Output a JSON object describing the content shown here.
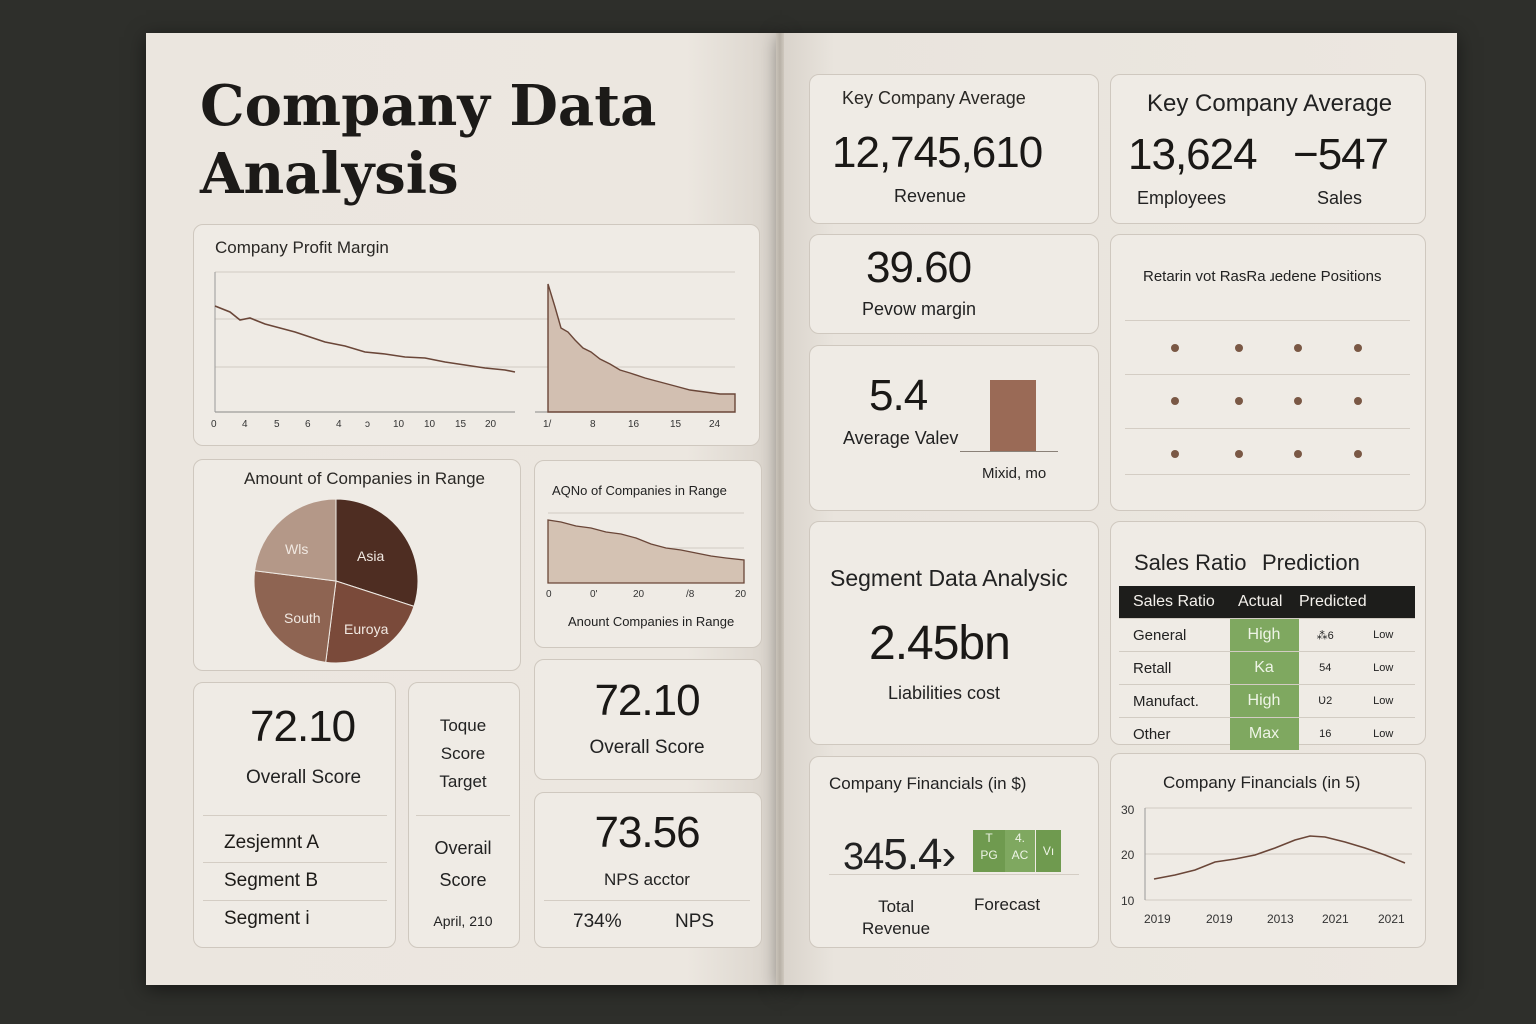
{
  "title_line1": "Company Data",
  "title_line2": "Analysis",
  "profit": {
    "title": "Company Profit Margin",
    "ticks_a": [
      "0",
      "4",
      "5",
      "6",
      "4",
      "ↄ",
      "10",
      "10",
      "15",
      "20"
    ],
    "ticks_b": [
      "1/",
      "8",
      "16",
      "15",
      "24"
    ]
  },
  "pie": {
    "title": "Amount of Companies in Range",
    "slices": [
      {
        "label": "Asia",
        "value": 30,
        "color": "#4e2d22"
      },
      {
        "label": "Euroya",
        "value": 22,
        "color": "#7a4a3a"
      },
      {
        "label": "South",
        "value": 25,
        "color": "#8e6452"
      },
      {
        "label": "Wls",
        "value": 23,
        "color": "#b49888"
      }
    ]
  },
  "range": {
    "title": "AQNo of Companies in Range",
    "ticks": [
      "0",
      "0'",
      "20",
      "/8",
      "20"
    ],
    "xlabel": "Anount Companies in Range"
  },
  "score_left": {
    "value": "72.10",
    "label": "Overall Score"
  },
  "segments": [
    "Zesjemnt A",
    "Segment B",
    "Segment i"
  ],
  "toque": {
    "lines": [
      "Toque",
      "Score",
      "Target"
    ],
    "lines2": [
      "Overail",
      "Score"
    ],
    "date": "April, 210"
  },
  "score_mid": {
    "value": "72.10",
    "label": "Overall Score"
  },
  "nps": {
    "value": "73.56",
    "label": "NPS acctor",
    "pct": "734%",
    "tag": "NPS"
  },
  "kca1": {
    "title": "Key Company Average",
    "value": "12,745,610",
    "label": "Revenue"
  },
  "kca2": {
    "title": "Key Company Average",
    "v1": "13,624",
    "l1": "Employees",
    "v2": "−547",
    "l2": "Sales"
  },
  "margin": {
    "value": "39.60",
    "label": "Pevow margin"
  },
  "avg": {
    "value": "5.4",
    "label": "Average Valev",
    "bar_label": "Mixid, mo"
  },
  "positions": {
    "title": "Retarin vot RasRa ɹedene Positions"
  },
  "segment": {
    "title": "Segment Data Analysic",
    "value": "2.45bn",
    "label": "Liabilities cost"
  },
  "sales": {
    "title1": "Sales Ratio",
    "title2": "Prediction",
    "headers": [
      "Sales Ratio",
      "Actual",
      "Predicted",
      ""
    ],
    "rows": [
      {
        "name": "General",
        "actual": "High",
        "pred": "⁂6",
        "low": "Low"
      },
      {
        "name": "Retall",
        "actual": "Ka",
        "pred": "54",
        "low": "Low"
      },
      {
        "name": "Manufact.",
        "actual": "High",
        "pred": "Ʋ2",
        "low": "Low"
      },
      {
        "name": "Other",
        "actual": "Max",
        "pred": "16",
        "low": "Low"
      }
    ]
  },
  "fin1": {
    "title": "Company Financials (in $)",
    "value": "34",
    "value2": "5.4›",
    "b1a": "T",
    "b1b": "PG",
    "b2a": "4.",
    "b2b": "AC",
    "b3": "Vı",
    "label1": "Total",
    "label1b": "Revenue",
    "label2": "Forecast"
  },
  "fin2": {
    "title": "Company Financials (in 5)",
    "yticks": [
      "30",
      "20",
      "10"
    ],
    "xticks": [
      "2019",
      "2019",
      "2013",
      "2021",
      "2021"
    ]
  }
}
